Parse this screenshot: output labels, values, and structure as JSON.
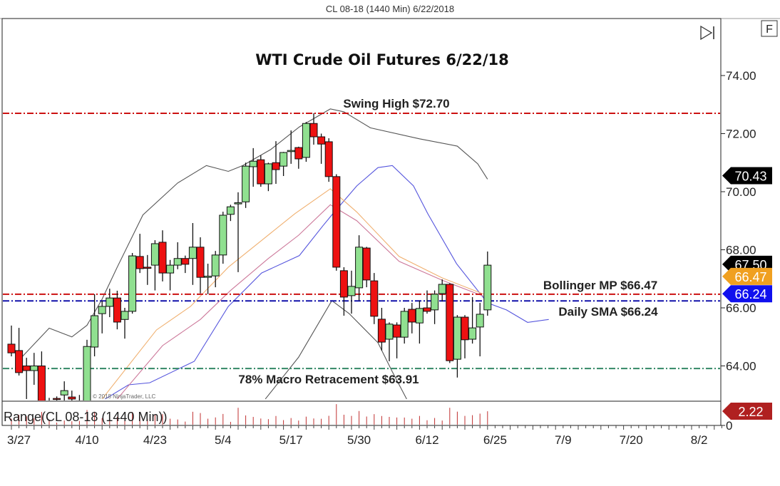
{
  "header": {
    "instrument_title": "CL 08-18 (1440 Min)  6/22/2018"
  },
  "toolbar": {
    "scroll_end_icon": "skip-to-end-icon",
    "f_button_label": "F"
  },
  "copyright": "© 2018 NinjaTrader, LLC",
  "chart_data": {
    "type": "candlestick",
    "title": "WTI Crude Oil Futures 6/22/18",
    "y_ticks": [
      "74.00",
      "72.00",
      "70.00",
      "68.00",
      "66.00",
      "64.00"
    ],
    "y_tick_values": [
      74,
      72,
      70,
      68,
      66,
      64
    ],
    "ylim": [
      62.8,
      75.0
    ],
    "x_ticks": [
      {
        "label": "3/27",
        "bar": 1
      },
      {
        "label": "4/10",
        "bar": 10
      },
      {
        "label": "4/23",
        "bar": 19
      },
      {
        "label": "5/4",
        "bar": 28
      },
      {
        "label": "5/17",
        "bar": 37
      },
      {
        "label": "5/30",
        "bar": 46
      },
      {
        "label": "6/12",
        "bar": 55
      },
      {
        "label": "6/25",
        "bar": 64
      },
      {
        "label": "7/9",
        "bar": 73
      },
      {
        "label": "7/20",
        "bar": 82
      },
      {
        "label": "8/2",
        "bar": 91
      }
    ],
    "candles_ohlc": [
      [
        64.75,
        65.39,
        64.33,
        64.45
      ],
      [
        64.53,
        65.31,
        63.67,
        63.77
      ],
      [
        64.0,
        64.28,
        62.86,
        63.84
      ],
      [
        63.84,
        64.45,
        63.35,
        64.0
      ],
      [
        64.0,
        64.5,
        62.4,
        62.6
      ],
      [
        62.6,
        62.9,
        62.0,
        62.4
      ],
      [
        62.88,
        62.95,
        62.5,
        62.85
      ],
      [
        63.0,
        63.47,
        62.7,
        63.15
      ],
      [
        62.93,
        63.15,
        62.5,
        62.86
      ],
      [
        62.7,
        63.0,
        62.3,
        62.8
      ],
      [
        62.7,
        64.9,
        62.5,
        64.67
      ],
      [
        64.65,
        66.47,
        64.33,
        65.73
      ],
      [
        65.8,
        66.25,
        65.12,
        66.05
      ],
      [
        66.05,
        66.66,
        65.68,
        66.34
      ],
      [
        66.34,
        66.59,
        65.26,
        65.51
      ],
      [
        65.6,
        66.0,
        64.94,
        65.88
      ],
      [
        65.88,
        67.89,
        65.8,
        67.79
      ],
      [
        67.77,
        68.55,
        67.2,
        67.35
      ],
      [
        67.4,
        67.82,
        66.79,
        67.36
      ],
      [
        67.47,
        68.33,
        66.6,
        68.21
      ],
      [
        68.26,
        68.67,
        66.91,
        67.2
      ],
      [
        67.2,
        67.65,
        66.6,
        67.47
      ],
      [
        67.47,
        68.26,
        67.33,
        67.7
      ],
      [
        67.7,
        67.8,
        67.2,
        67.5
      ],
      [
        67.7,
        68.92,
        66.79,
        68.09
      ],
      [
        68.09,
        68.43,
        66.5,
        67.05
      ],
      [
        67.05,
        67.52,
        66.47,
        67.09
      ],
      [
        67.1,
        67.96,
        66.71,
        67.82
      ],
      [
        67.82,
        69.31,
        67.52,
        69.19
      ],
      [
        69.22,
        69.55,
        68.99,
        69.48
      ],
      [
        69.58,
        69.98,
        67.23,
        69.62
      ],
      [
        69.65,
        71.0,
        69.44,
        70.88
      ],
      [
        70.86,
        71.5,
        70.17,
        71.05
      ],
      [
        71.1,
        71.25,
        70.17,
        70.27
      ],
      [
        70.27,
        71.0,
        70.02,
        70.96
      ],
      [
        71.0,
        71.74,
        70.27,
        70.76
      ],
      [
        70.88,
        71.37,
        70.54,
        71.35
      ],
      [
        71.38,
        72.11,
        70.96,
        71.42
      ],
      [
        71.52,
        71.55,
        70.79,
        71.13
      ],
      [
        71.18,
        72.4,
        71.03,
        72.35
      ],
      [
        72.35,
        72.7,
        71.62,
        71.89
      ],
      [
        71.89,
        72.0,
        70.96,
        71.64
      ],
      [
        71.72,
        71.84,
        70.34,
        70.52
      ],
      [
        70.52,
        70.6,
        67.28,
        67.4
      ],
      [
        67.28,
        67.4,
        65.73,
        66.37
      ],
      [
        66.42,
        67.28,
        65.8,
        66.74
      ],
      [
        66.69,
        68.5,
        66.25,
        68.09
      ],
      [
        68.06,
        68.1,
        66.71,
        66.96
      ],
      [
        66.93,
        67.2,
        65.44,
        65.71
      ],
      [
        65.61,
        66.0,
        64.53,
        64.82
      ],
      [
        64.92,
        65.5,
        64.16,
        65.44
      ],
      [
        65.41,
        65.5,
        64.26,
        64.99
      ],
      [
        64.99,
        66.0,
        64.77,
        65.88
      ],
      [
        65.95,
        66.17,
        65.12,
        65.51
      ],
      [
        65.48,
        66.25,
        64.77,
        65.98
      ],
      [
        66.0,
        66.6,
        65.8,
        65.88
      ],
      [
        65.93,
        66.6,
        65.44,
        66.47
      ],
      [
        66.49,
        66.98,
        66.22,
        66.81
      ],
      [
        66.81,
        66.85,
        64.1,
        64.18
      ],
      [
        64.23,
        65.75,
        63.6,
        65.68
      ],
      [
        65.68,
        65.75,
        64.26,
        64.9
      ],
      [
        64.92,
        66.37,
        64.77,
        65.31
      ],
      [
        65.34,
        66.17,
        64.33,
        65.78
      ],
      [
        65.93,
        67.94,
        65.73,
        67.47
      ]
    ],
    "up_color": "#90e090",
    "down_color": "#ee1111",
    "indicators": [
      {
        "kind": "upper-band",
        "color": "#555555",
        "points": [
          [
            1,
            64.2
          ],
          [
            5,
            65.3
          ],
          [
            8,
            65.0
          ],
          [
            10,
            65.4
          ],
          [
            12,
            66.3
          ],
          [
            14,
            67.4
          ],
          [
            17.4,
            69.2
          ],
          [
            22,
            70.3
          ],
          [
            25.8,
            70.9
          ],
          [
            28.7,
            70.7
          ],
          [
            30.6,
            70.9
          ],
          [
            34.3,
            71.45
          ],
          [
            38.1,
            72.23
          ],
          [
            42.2,
            72.85
          ],
          [
            44,
            72.75
          ],
          [
            47.5,
            72.2
          ],
          [
            54,
            71.82
          ],
          [
            59,
            71.57
          ],
          [
            61.7,
            70.96
          ],
          [
            63,
            70.43
          ]
        ]
      },
      {
        "kind": "lower-band",
        "color": "#555555",
        "points": [
          [
            33.6,
            62.86
          ],
          [
            38,
            64.3
          ],
          [
            42.4,
            66.25
          ],
          [
            44.7,
            65.8
          ],
          [
            48.5,
            64.8
          ],
          [
            50.4,
            63.8
          ],
          [
            52.3,
            62.86
          ]
        ]
      },
      {
        "kind": "displaced-ma",
        "color": "#5555dd",
        "points": [
          [
            12.4,
            62.86
          ],
          [
            15.5,
            63.35
          ],
          [
            18.3,
            63.42
          ],
          [
            24.2,
            64.16
          ],
          [
            28.7,
            66.05
          ],
          [
            33.1,
            67.2
          ],
          [
            38.1,
            67.8
          ],
          [
            41.2,
            68.82
          ],
          [
            42.4,
            69.2
          ],
          [
            45.7,
            70.2
          ],
          [
            48.5,
            70.83
          ],
          [
            50.4,
            70.9
          ],
          [
            53.2,
            70.2
          ],
          [
            55.1,
            69.24
          ],
          [
            58.9,
            67.52
          ],
          [
            63,
            66.17
          ],
          [
            65.5,
            65.93
          ],
          [
            68.3,
            65.5
          ],
          [
            71.1,
            65.6
          ]
        ]
      },
      {
        "kind": "ma-orange",
        "color": "#f0b070",
        "points": [
          [
            12,
            62.86
          ],
          [
            19.2,
            65.24
          ],
          [
            23.7,
            66.05
          ],
          [
            28.7,
            67.4
          ],
          [
            33,
            68.3
          ],
          [
            37.5,
            69.24
          ],
          [
            42.2,
            70.1
          ],
          [
            45.7,
            69.3
          ],
          [
            51.3,
            67.77
          ],
          [
            57,
            67.03
          ],
          [
            63,
            66.42
          ]
        ]
      },
      {
        "kind": "ma-pink",
        "color": "#cc7799",
        "points": [
          [
            14,
            62.86
          ],
          [
            20,
            64.7
          ],
          [
            25,
            65.6
          ],
          [
            29,
            66.6
          ],
          [
            34,
            67.7
          ],
          [
            38,
            68.5
          ],
          [
            42.2,
            69.55
          ],
          [
            45.7,
            69.0
          ],
          [
            51.3,
            67.6
          ],
          [
            57,
            66.95
          ],
          [
            63,
            66.35
          ]
        ]
      }
    ],
    "levels": [
      {
        "label": "Swing High $72.70",
        "value": 72.7,
        "color": "#cc1111"
      },
      {
        "label": "Bollinger MP $66.47",
        "value": 66.47,
        "color": "#cc1111"
      },
      {
        "label": "Daily SMA $66.24",
        "value": 66.24,
        "color": "#1111aa"
      },
      {
        "label": "78% Macro Retracement $63.91",
        "value": 63.91,
        "color": "#338866"
      }
    ],
    "price_tags": [
      {
        "text": "70.43",
        "value": 70.43,
        "color": "#000000"
      },
      {
        "text": "67.50",
        "value": 67.5,
        "color": "#000000"
      },
      {
        "text": "66.47",
        "value": 66.47,
        "color": "#f0a020"
      },
      {
        "text": "66.24",
        "value": 66.24,
        "color": "#1010ee"
      }
    ],
    "range_panel": {
      "label": "Range(CL 08-18 (1440 Min))",
      "zero_tick": "0",
      "last_value_tag": "2.22",
      "tag_color": "#b02020"
    }
  }
}
